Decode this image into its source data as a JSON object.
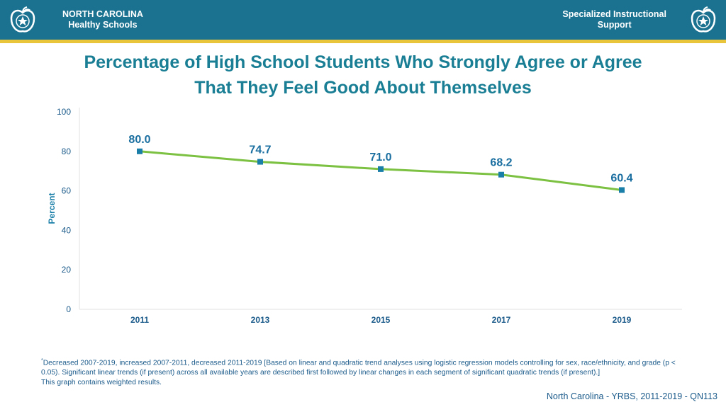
{
  "header": {
    "left_brand": [
      "NORTH CAROLINA",
      "Healthy Schools"
    ],
    "right_brand": [
      "Specialized Instructional",
      "Support"
    ]
  },
  "title_lines": [
    "Percentage of High School Students Who Strongly Agree or Agree",
    "That They Feel Good About Themselves"
  ],
  "colors": {
    "header": "#1a7290",
    "stripe": "#e8c53b",
    "line": "#7dc142",
    "marker": "#1a7fa8",
    "label": "#1a6fa0"
  },
  "chart_data": {
    "type": "line",
    "categories": [
      "2011",
      "2013",
      "2015",
      "2017",
      "2019"
    ],
    "values": [
      80.0,
      74.7,
      71.0,
      68.2,
      60.4
    ],
    "data_labels": [
      "80.0",
      "74.7",
      "71.0",
      "68.2",
      "60.4"
    ],
    "ylabel": "Percent",
    "ylim": [
      0,
      100
    ],
    "yticks": [
      0,
      20,
      40,
      60,
      80,
      100
    ],
    "grid": false
  },
  "footnote": {
    "marker": "*",
    "text": "Decreased 2007-2019, increased 2007-2011, decreased 2011-2019 [Based on linear and quadratic trend analyses using logistic regression models controlling for sex, race/ethnicity, and grade (p < 0.05). Significant linear trends (if present) across all available years are described first followed by linear changes in each segment of significant quadratic trends (if present).]",
    "weighted_note": "This graph contains weighted results."
  },
  "source": "North Carolina - YRBS, 2011-2019 - QN113"
}
